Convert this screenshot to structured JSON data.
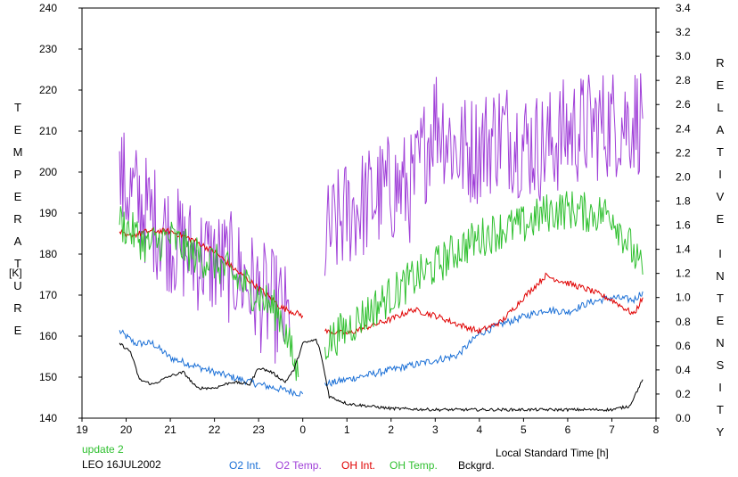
{
  "chart_data": {
    "type": "line",
    "title": "",
    "xlabel": "Local Standard Time [h]",
    "ylabel_left": "TEMPERATURE",
    "ylabel_left_unit": "[K]",
    "ylabel_right": "RELATIVE INTENSITY",
    "x_range": [
      19,
      8
    ],
    "x_ticks": [
      "19",
      "20",
      "21",
      "22",
      "23",
      "0",
      "1",
      "2",
      "3",
      "4",
      "5",
      "6",
      "7",
      "8"
    ],
    "y_left_range": [
      140,
      240
    ],
    "y_left_ticks": [
      "140",
      "150",
      "160",
      "170",
      "180",
      "190",
      "200",
      "210",
      "220",
      "230",
      "240"
    ],
    "y_right_range": [
      0.0,
      3.4
    ],
    "y_right_ticks": [
      "0.0",
      "0.2",
      "0.4",
      "0.6",
      "0.8",
      "1.0",
      "1.2",
      "1.4",
      "1.6",
      "1.8",
      "2.0",
      "2.2",
      "2.4",
      "2.6",
      "2.8",
      "3.0",
      "3.2",
      "3.4"
    ],
    "grid": false,
    "legend_position": "bottom",
    "footer": {
      "update": "update 2",
      "station": "LEO 16JUL2002"
    },
    "series": [
      {
        "name": "O2 Int.",
        "axis": "right",
        "color": "#1a6fd6",
        "noise": 0.03,
        "segments": [
          {
            "x": [
              19.85,
              20.2,
              20.6,
              21.0,
              21.5,
              22.0,
              22.5,
              23.0,
              23.5,
              24.0
            ],
            "y": [
              0.72,
              0.62,
              0.62,
              0.5,
              0.44,
              0.38,
              0.33,
              0.28,
              0.24,
              0.2
            ]
          },
          {
            "x": [
              24.5,
              25.0,
              25.5,
              26.0,
              26.5,
              27.0,
              27.5,
              28.0,
              28.5,
              29.0,
              29.5,
              30.0,
              30.5,
              31.0,
              31.5,
              31.7
            ],
            "y": [
              0.28,
              0.32,
              0.36,
              0.4,
              0.44,
              0.48,
              0.52,
              0.7,
              0.78,
              0.84,
              0.9,
              0.88,
              0.96,
              1.0,
              0.98,
              1.05
            ]
          }
        ]
      },
      {
        "name": "O2 Temp.",
        "axis": "left",
        "color": "#a040d8",
        "noise": 14,
        "segments": [
          {
            "x": [
              19.85,
              20.5,
              21.0,
              21.5,
              22.0,
              22.5,
              23.0,
              23.5,
              23.7
            ],
            "y": [
              198,
              190,
              184,
              180,
              178,
              176,
              170,
              166,
              162
            ]
          },
          {
            "x": [
              24.5,
              25.0,
              25.5,
              26.0,
              26.5,
              27.0,
              27.5,
              28.0,
              28.5,
              29.0,
              29.5,
              30.0,
              30.5,
              31.0,
              31.5,
              31.7
            ],
            "y": [
              183,
              190,
              193,
              196,
              196,
              214,
              205,
              206,
              210,
              207,
              206,
              210,
              211,
              212,
              213,
              213
            ]
          }
        ]
      },
      {
        "name": "OH Int.",
        "axis": "right",
        "color": "#e00000",
        "noise": 0.025,
        "segments": [
          {
            "x": [
              19.85,
              20.0,
              20.5,
              21.0,
              21.5,
              22.0,
              22.5,
              23.0,
              23.5,
              24.0
            ],
            "y": [
              1.55,
              1.5,
              1.55,
              1.55,
              1.48,
              1.38,
              1.22,
              1.08,
              0.92,
              0.85
            ]
          },
          {
            "x": [
              24.5,
              25.0,
              25.5,
              26.0,
              26.5,
              27.0,
              27.5,
              28.0,
              28.5,
              29.0,
              29.5,
              30.0,
              30.5,
              31.0,
              31.5,
              31.7
            ],
            "y": [
              0.72,
              0.7,
              0.76,
              0.82,
              0.9,
              0.85,
              0.78,
              0.72,
              0.8,
              1.0,
              1.18,
              1.12,
              1.06,
              0.98,
              0.86,
              1.0
            ]
          }
        ]
      },
      {
        "name": "OH Temp.",
        "axis": "left",
        "color": "#30c030",
        "noise": 5,
        "segments": [
          {
            "x": [
              19.85,
              20.5,
              21.0,
              21.5,
              22.0,
              22.5,
              23.0,
              23.5,
              23.9
            ],
            "y": [
              188,
              182,
              184,
              180,
              178,
              174,
              170,
              165,
              150
            ]
          },
          {
            "x": [
              24.5,
              25.0,
              25.5,
              26.0,
              26.5,
              27.0,
              27.5,
              28.0,
              28.5,
              29.0,
              29.5,
              30.0,
              30.5,
              31.0,
              31.5,
              31.7
            ],
            "y": [
              158,
              162,
              166,
              170,
              174,
              177,
              181,
              184,
              186,
              187,
              190,
              191,
              190,
              190,
              180,
              175
            ]
          }
        ]
      },
      {
        "name": "Bckgrd.",
        "axis": "right",
        "color": "#000000",
        "noise": 0.012,
        "segments": [
          {
            "x": [
              19.85,
              20.1,
              20.3,
              20.6,
              21.0,
              21.3,
              21.6,
              22.0,
              22.4,
              22.8,
              23.0,
              23.3,
              23.6,
              23.8,
              24.0,
              24.3,
              24.4,
              24.6,
              25.0,
              25.5,
              26.0,
              27.0,
              28.0,
              29.0,
              30.0,
              31.0,
              31.4,
              31.7
            ],
            "y": [
              0.62,
              0.55,
              0.32,
              0.28,
              0.35,
              0.38,
              0.25,
              0.25,
              0.3,
              0.28,
              0.42,
              0.38,
              0.3,
              0.4,
              0.62,
              0.65,
              0.55,
              0.18,
              0.12,
              0.1,
              0.08,
              0.07,
              0.07,
              0.07,
              0.07,
              0.07,
              0.1,
              0.32
            ]
          }
        ]
      }
    ]
  }
}
